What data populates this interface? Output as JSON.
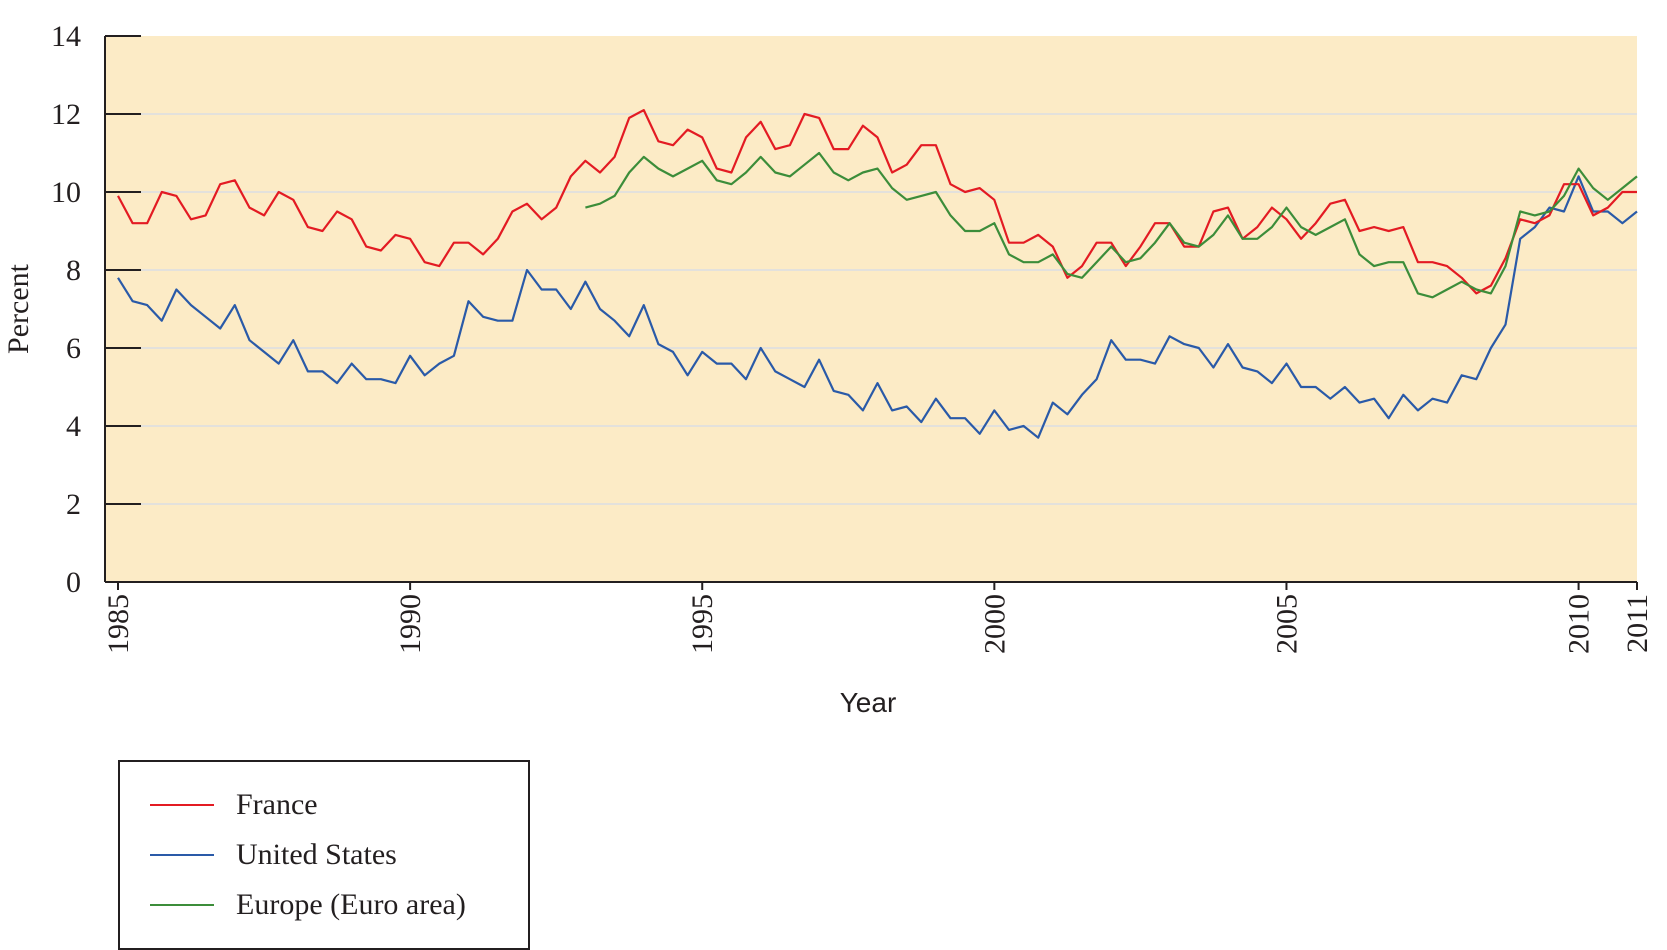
{
  "chart_data": {
    "type": "line",
    "title": "",
    "xlabel": "Year",
    "ylabel": "Percent",
    "xlim": [
      1985,
      2011
    ],
    "ylim": [
      0,
      14
    ],
    "yticks": [
      "0",
      "2",
      "4",
      "6",
      "8",
      "10",
      "12",
      "14"
    ],
    "xticks": [
      "1985",
      "1990",
      "1995",
      "2000",
      "2005",
      "2010",
      "2011"
    ],
    "grid": true,
    "legend_position": "bottom-left",
    "plot_background": "#fcebc6",
    "series": [
      {
        "name": "France",
        "color": "#e31b23",
        "x": [
          1985.0,
          1985.25,
          1985.5,
          1985.75,
          1986.0,
          1986.25,
          1986.5,
          1986.75,
          1987.0,
          1987.25,
          1987.5,
          1987.75,
          1988.0,
          1988.25,
          1988.5,
          1988.75,
          1989.0,
          1989.25,
          1989.5,
          1989.75,
          1990.0,
          1990.25,
          1990.5,
          1990.75,
          1991.0,
          1991.25,
          1991.5,
          1991.75,
          1992.0,
          1992.25,
          1992.5,
          1992.75,
          1993.0,
          1993.25,
          1993.5,
          1993.75,
          1994.0,
          1994.25,
          1994.5,
          1994.75,
          1995.0,
          1995.25,
          1995.5,
          1995.75,
          1996.0,
          1996.25,
          1996.5,
          1996.75,
          1997.0,
          1997.25,
          1997.5,
          1997.75,
          1998.0,
          1998.25,
          1998.5,
          1998.75,
          1999.0,
          1999.25,
          1999.5,
          1999.75,
          2000.0,
          2000.25,
          2000.5,
          2000.75,
          2001.0,
          2001.25,
          2001.5,
          2001.75,
          2002.0,
          2002.25,
          2002.5,
          2002.75,
          2003.0,
          2003.25,
          2003.5,
          2003.75,
          2004.0,
          2004.25,
          2004.5,
          2004.75,
          2005.0,
          2005.25,
          2005.5,
          2005.75,
          2006.0,
          2006.25,
          2006.5,
          2006.75,
          2007.0,
          2007.25,
          2007.5,
          2007.75,
          2008.0,
          2008.25,
          2008.5,
          2008.75,
          2009.0,
          2009.25,
          2009.5,
          2009.75,
          2010.0,
          2010.25,
          2010.5,
          2010.75,
          2011.0
        ],
        "values": [
          9.9,
          9.2,
          9.2,
          10.0,
          9.9,
          9.3,
          9.4,
          10.2,
          10.3,
          9.6,
          9.4,
          10.0,
          9.8,
          9.1,
          9.0,
          9.5,
          9.3,
          8.6,
          8.5,
          8.9,
          8.8,
          8.2,
          8.1,
          8.7,
          8.7,
          8.4,
          8.8,
          9.5,
          9.7,
          9.3,
          9.6,
          10.4,
          10.8,
          10.5,
          10.9,
          11.9,
          12.1,
          11.3,
          11.2,
          11.6,
          11.4,
          10.6,
          10.5,
          11.4,
          11.8,
          11.1,
          11.2,
          12.0,
          11.9,
          11.1,
          11.1,
          11.7,
          11.4,
          10.5,
          10.7,
          11.2,
          11.2,
          10.2,
          10.0,
          10.1,
          9.8,
          8.7,
          8.7,
          8.9,
          8.6,
          7.8,
          8.1,
          8.7,
          8.7,
          8.1,
          8.6,
          9.2,
          9.2,
          8.6,
          8.6,
          9.5,
          9.6,
          8.8,
          9.1,
          9.6,
          9.3,
          8.8,
          9.2,
          9.7,
          9.8,
          9.0,
          9.1,
          9.0,
          9.1,
          8.2,
          8.2,
          8.1,
          7.8,
          7.4,
          7.6,
          8.3,
          9.3,
          9.2,
          9.4,
          10.2,
          10.2,
          9.4,
          9.6,
          10.0,
          10.0
        ]
      },
      {
        "name": "United States",
        "color": "#2a5aa8",
        "x": [
          1985.0,
          1985.25,
          1985.5,
          1985.75,
          1986.0,
          1986.25,
          1986.5,
          1986.75,
          1987.0,
          1987.25,
          1987.5,
          1987.75,
          1988.0,
          1988.25,
          1988.5,
          1988.75,
          1989.0,
          1989.25,
          1989.5,
          1989.75,
          1990.0,
          1990.25,
          1990.5,
          1990.75,
          1991.0,
          1991.25,
          1991.5,
          1991.75,
          1992.0,
          1992.25,
          1992.5,
          1992.75,
          1993.0,
          1993.25,
          1993.5,
          1993.75,
          1994.0,
          1994.25,
          1994.5,
          1994.75,
          1995.0,
          1995.25,
          1995.5,
          1995.75,
          1996.0,
          1996.25,
          1996.5,
          1996.75,
          1997.0,
          1997.25,
          1997.5,
          1997.75,
          1998.0,
          1998.25,
          1998.5,
          1998.75,
          1999.0,
          1999.25,
          1999.5,
          1999.75,
          2000.0,
          2000.25,
          2000.5,
          2000.75,
          2001.0,
          2001.25,
          2001.5,
          2001.75,
          2002.0,
          2002.25,
          2002.5,
          2002.75,
          2003.0,
          2003.25,
          2003.5,
          2003.75,
          2004.0,
          2004.25,
          2004.5,
          2004.75,
          2005.0,
          2005.25,
          2005.5,
          2005.75,
          2006.0,
          2006.25,
          2006.5,
          2006.75,
          2007.0,
          2007.25,
          2007.5,
          2007.75,
          2008.0,
          2008.25,
          2008.5,
          2008.75,
          2009.0,
          2009.25,
          2009.5,
          2009.75,
          2010.0,
          2010.25,
          2010.5,
          2010.75,
          2011.0
        ],
        "values": [
          7.8,
          7.2,
          7.1,
          6.7,
          7.5,
          7.1,
          6.8,
          6.5,
          7.1,
          6.2,
          5.9,
          5.6,
          6.2,
          5.4,
          5.4,
          5.1,
          5.6,
          5.2,
          5.2,
          5.1,
          5.8,
          5.3,
          5.6,
          5.8,
          7.2,
          6.8,
          6.7,
          6.7,
          8.0,
          7.5,
          7.5,
          7.0,
          7.7,
          7.0,
          6.7,
          6.3,
          7.1,
          6.1,
          5.9,
          5.3,
          5.9,
          5.6,
          5.6,
          5.2,
          6.0,
          5.4,
          5.2,
          5.0,
          5.7,
          4.9,
          4.8,
          4.4,
          5.1,
          4.4,
          4.5,
          4.1,
          4.7,
          4.2,
          4.2,
          3.8,
          4.4,
          3.9,
          4.0,
          3.7,
          4.6,
          4.3,
          4.8,
          5.2,
          6.2,
          5.7,
          5.7,
          5.6,
          6.3,
          6.1,
          6.0,
          5.5,
          6.1,
          5.5,
          5.4,
          5.1,
          5.6,
          5.0,
          5.0,
          4.7,
          5.0,
          4.6,
          4.7,
          4.2,
          4.8,
          4.4,
          4.7,
          4.6,
          5.3,
          5.2,
          6.0,
          6.6,
          8.8,
          9.1,
          9.6,
          9.5,
          10.4,
          9.5,
          9.5,
          9.2,
          9.5
        ]
      },
      {
        "name": "Europe (Euro area)",
        "color": "#3c8d3a",
        "x": [
          1993.0,
          1993.25,
          1993.5,
          1993.75,
          1994.0,
          1994.25,
          1994.5,
          1994.75,
          1995.0,
          1995.25,
          1995.5,
          1995.75,
          1996.0,
          1996.25,
          1996.5,
          1996.75,
          1997.0,
          1997.25,
          1997.5,
          1997.75,
          1998.0,
          1998.25,
          1998.5,
          1998.75,
          1999.0,
          1999.25,
          1999.5,
          1999.75,
          2000.0,
          2000.25,
          2000.5,
          2000.75,
          2001.0,
          2001.25,
          2001.5,
          2001.75,
          2002.0,
          2002.25,
          2002.5,
          2002.75,
          2003.0,
          2003.25,
          2003.5,
          2003.75,
          2004.0,
          2004.25,
          2004.5,
          2004.75,
          2005.0,
          2005.25,
          2005.5,
          2005.75,
          2006.0,
          2006.25,
          2006.5,
          2006.75,
          2007.0,
          2007.25,
          2007.5,
          2007.75,
          2008.0,
          2008.25,
          2008.5,
          2008.75,
          2009.0,
          2009.25,
          2009.5,
          2009.75,
          2010.0,
          2010.25,
          2010.5,
          2010.75,
          2011.0
        ],
        "values": [
          9.6,
          9.7,
          9.9,
          10.5,
          10.9,
          10.6,
          10.4,
          10.6,
          10.8,
          10.3,
          10.2,
          10.5,
          10.9,
          10.5,
          10.4,
          10.7,
          11.0,
          10.5,
          10.3,
          10.5,
          10.6,
          10.1,
          9.8,
          9.9,
          10.0,
          9.4,
          9.0,
          9.0,
          9.2,
          8.4,
          8.2,
          8.2,
          8.4,
          7.9,
          7.8,
          8.2,
          8.6,
          8.2,
          8.3,
          8.7,
          9.2,
          8.7,
          8.6,
          8.9,
          9.4,
          8.8,
          8.8,
          9.1,
          9.6,
          9.1,
          8.9,
          9.1,
          9.3,
          8.4,
          8.1,
          8.2,
          8.2,
          7.4,
          7.3,
          7.5,
          7.7,
          7.5,
          7.4,
          8.1,
          9.5,
          9.4,
          9.5,
          9.9,
          10.6,
          10.1,
          9.8,
          10.1,
          10.4
        ]
      }
    ]
  }
}
